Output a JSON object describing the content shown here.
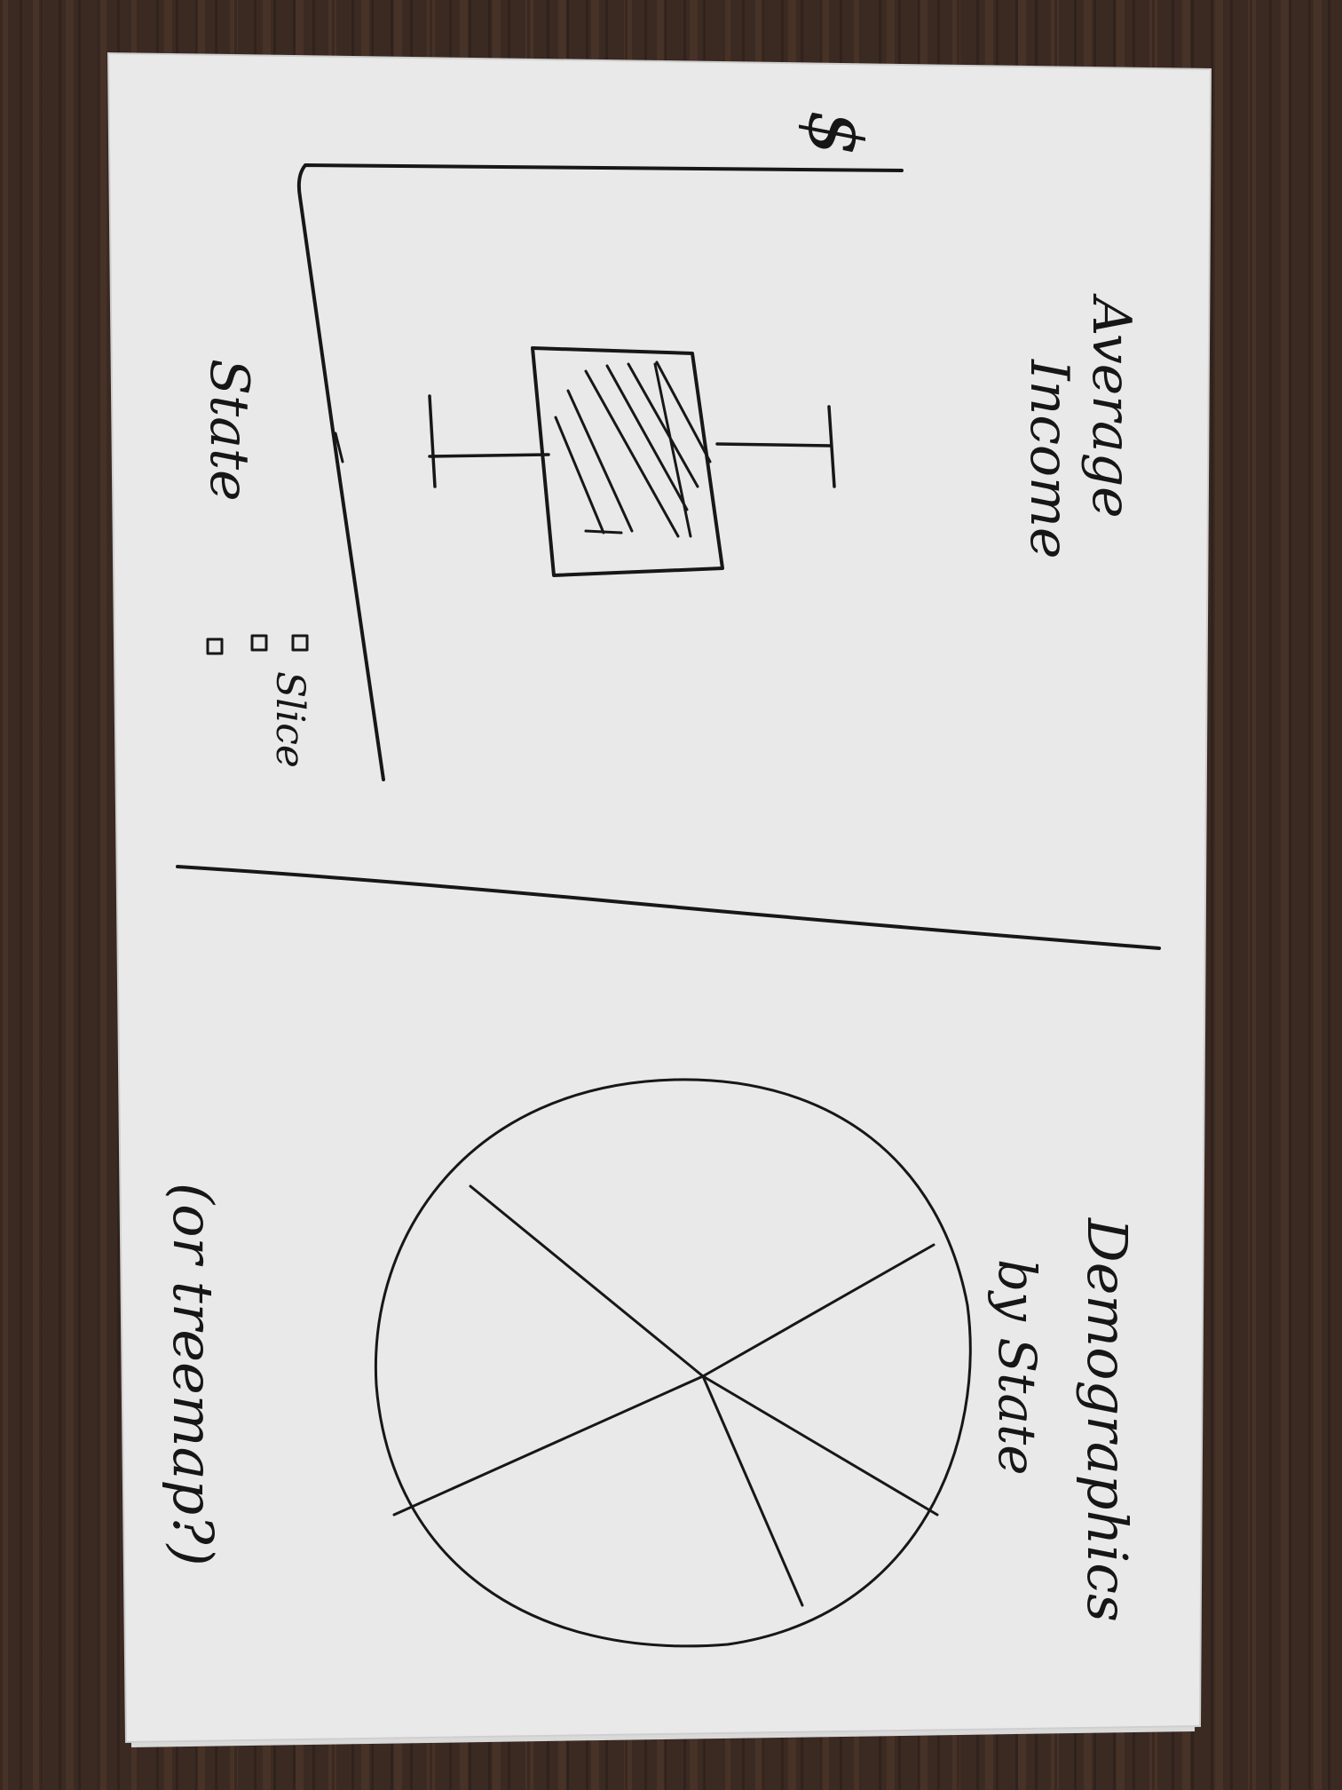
{
  "sketch": {
    "top_panel": {
      "title": "Average Income",
      "title_lines": [
        "Average",
        "Income"
      ],
      "y_axis_symbol": "$",
      "x_axis_label": "State",
      "checkbox_label": "Slice",
      "checkbox_count": 3
    },
    "bottom_panel": {
      "title": "Demographics by State",
      "title_lines": [
        "Demographics",
        "by State"
      ],
      "note": "(or treemap?)",
      "pie_slice_count": 5
    }
  }
}
